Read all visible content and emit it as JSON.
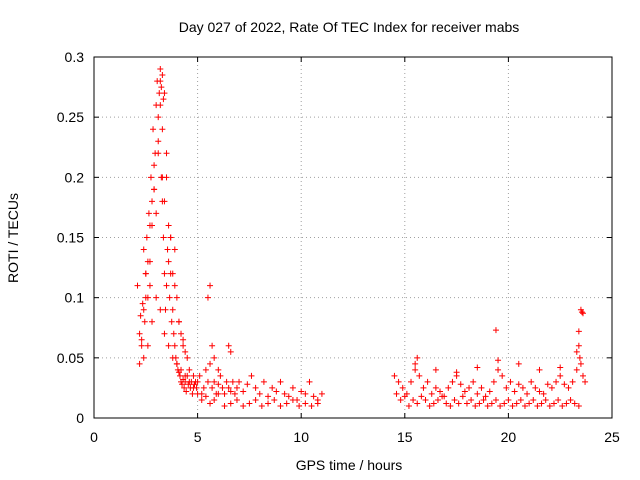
{
  "chart_data": {
    "type": "scatter",
    "title": "Day 027 of 2022, Rate Of TEC Index for receiver mabs",
    "xlabel": "GPS time / hours",
    "ylabel": "ROTI / TECUs",
    "xlim": [
      0,
      25
    ],
    "ylim": [
      0,
      0.3
    ],
    "x_ticks": [
      0,
      5,
      10,
      15,
      20,
      25
    ],
    "x_tick_labels": [
      "0",
      "5",
      "10",
      "15",
      "20",
      "25"
    ],
    "y_ticks": [
      0,
      0.05,
      0.1,
      0.15,
      0.2,
      0.25,
      0.3
    ],
    "y_tick_labels": [
      "0",
      "0.05",
      "0.1",
      "0.15",
      "0.2",
      "0.25",
      "0.3"
    ],
    "grid": true,
    "marker": "+",
    "color": "#ff0000",
    "series": [
      {
        "x": [
          2.1,
          2.2,
          2.25,
          2.3,
          2.35,
          2.4,
          2.45,
          2.5,
          2.55,
          2.6,
          2.65,
          2.7,
          2.75,
          2.8,
          2.85,
          2.9,
          2.95,
          3.0,
          3.05,
          3.1,
          3.15,
          3.2,
          3.25,
          3.3,
          3.35,
          3.4,
          3.45,
          3.5,
          3.55,
          3.6,
          3.65,
          3.7,
          3.75,
          3.8,
          3.85,
          3.9,
          3.95,
          4.0,
          4.05,
          4.1,
          4.15,
          4.2,
          4.25,
          4.3,
          4.35,
          4.4,
          4.45,
          4.5,
          4.55,
          4.6,
          4.65,
          4.7,
          4.75,
          4.8,
          4.85,
          4.9,
          4.95,
          5.0,
          5.1,
          5.2,
          5.3,
          5.4,
          5.5,
          5.6,
          5.7,
          5.8,
          5.9,
          6.0,
          6.1,
          6.2,
          6.3,
          6.4,
          6.5,
          6.6,
          6.7,
          6.8,
          6.9,
          7.0,
          7.2,
          7.4,
          7.6,
          7.8,
          8.0,
          8.2,
          8.4,
          8.6,
          8.8,
          9.0,
          9.2,
          9.4,
          9.6,
          9.8,
          10.0,
          10.2,
          10.4,
          10.6,
          10.8,
          11.0,
          2.3,
          2.4,
          2.5,
          2.6,
          2.7,
          2.8,
          2.9,
          3.0,
          3.1,
          3.2,
          3.3,
          3.4,
          3.5,
          3.6,
          3.7,
          3.8,
          3.9,
          4.0,
          4.1,
          4.2,
          4.3,
          4.4,
          4.5,
          2.5,
          2.7,
          2.9,
          3.1,
          3.3,
          3.5,
          3.7,
          3.9,
          4.1,
          4.3,
          3.2,
          3.25,
          3.3,
          3.35,
          3.4,
          5.5,
          5.6,
          5.7,
          5.8,
          6.0,
          6.5,
          6.6,
          2.2,
          2.4,
          2.6,
          2.8,
          3.0,
          3.2,
          3.4,
          3.6,
          3.8,
          4.0,
          4.2,
          4.4,
          4.6,
          4.8,
          5.0,
          5.2,
          5.4,
          5.6,
          5.8,
          6.0,
          6.3,
          6.6,
          6.9,
          7.2,
          7.5,
          7.8,
          8.1,
          8.4,
          8.7,
          9.0,
          9.3,
          9.6,
          9.9,
          10.2,
          10.5,
          10.8,
          14.5,
          14.7,
          14.9,
          15.1,
          15.3,
          15.5,
          15.7,
          15.9,
          16.1,
          16.3,
          16.5,
          16.7,
          16.9,
          17.1,
          17.3,
          17.5,
          17.7,
          17.9,
          18.1,
          18.3,
          18.5,
          18.7,
          18.9,
          19.1,
          19.3,
          19.5,
          19.7,
          19.9,
          20.1,
          20.3,
          20.5,
          20.7,
          20.9,
          21.1,
          21.3,
          21.5,
          21.7,
          21.9,
          22.1,
          22.3,
          22.5,
          22.7,
          22.9,
          23.1,
          23.3,
          23.5,
          23.6,
          23.7,
          14.6,
          14.8,
          15.0,
          15.2,
          15.4,
          15.6,
          15.8,
          16.0,
          16.2,
          16.4,
          16.6,
          16.8,
          17.0,
          17.2,
          17.4,
          17.6,
          17.8,
          18.0,
          18.2,
          18.4,
          18.6,
          18.8,
          19.0,
          19.2,
          19.4,
          19.6,
          19.8,
          20.0,
          20.2,
          20.4,
          20.6,
          20.8,
          21.0,
          21.2,
          21.4,
          21.6,
          21.8,
          22.0,
          22.2,
          22.4,
          22.6,
          22.8,
          23.0,
          23.2,
          23.4,
          15.5,
          15.6,
          16.5,
          17.5,
          18.5,
          19.5,
          20.5,
          21.5,
          22.5,
          23.3,
          23.4,
          19.4,
          23.5,
          23.55,
          23.6,
          23.4,
          23.45
        ],
        "y": [
          0.11,
          0.07,
          0.085,
          0.065,
          0.095,
          0.14,
          0.08,
          0.12,
          0.15,
          0.1,
          0.17,
          0.13,
          0.2,
          0.16,
          0.24,
          0.19,
          0.22,
          0.26,
          0.28,
          0.25,
          0.27,
          0.29,
          0.2,
          0.18,
          0.15,
          0.12,
          0.09,
          0.11,
          0.14,
          0.13,
          0.1,
          0.12,
          0.08,
          0.09,
          0.07,
          0.06,
          0.05,
          0.045,
          0.04,
          0.038,
          0.035,
          0.03,
          0.028,
          0.032,
          0.025,
          0.03,
          0.022,
          0.035,
          0.028,
          0.04,
          0.025,
          0.03,
          0.02,
          0.035,
          0.028,
          0.03,
          0.025,
          0.03,
          0.035,
          0.02,
          0.025,
          0.04,
          0.03,
          0.045,
          0.025,
          0.03,
          0.02,
          0.028,
          0.035,
          0.025,
          0.02,
          0.03,
          0.025,
          0.022,
          0.03,
          0.02,
          0.025,
          0.03,
          0.022,
          0.028,
          0.035,
          0.025,
          0.02,
          0.03,
          0.018,
          0.025,
          0.022,
          0.03,
          0.02,
          0.018,
          0.025,
          0.015,
          0.022,
          0.02,
          0.03,
          0.018,
          0.015,
          0.02,
          0.06,
          0.09,
          0.1,
          0.13,
          0.11,
          0.18,
          0.21,
          0.17,
          0.23,
          0.26,
          0.2,
          0.18,
          0.22,
          0.16,
          0.15,
          0.12,
          0.14,
          0.1,
          0.08,
          0.07,
          0.06,
          0.055,
          0.05,
          0.12,
          0.16,
          0.19,
          0.22,
          0.24,
          0.2,
          0.15,
          0.11,
          0.08,
          0.065,
          0.28,
          0.275,
          0.285,
          0.265,
          0.27,
          0.1,
          0.11,
          0.06,
          0.05,
          0.04,
          0.06,
          0.055,
          0.045,
          0.05,
          0.06,
          0.08,
          0.1,
          0.09,
          0.07,
          0.06,
          0.05,
          0.045,
          0.04,
          0.035,
          0.03,
          0.025,
          0.02,
          0.015,
          0.018,
          0.012,
          0.015,
          0.02,
          0.01,
          0.012,
          0.015,
          0.01,
          0.012,
          0.015,
          0.01,
          0.012,
          0.015,
          0.01,
          0.012,
          0.015,
          0.01,
          0.012,
          0.01,
          0.012,
          0.035,
          0.03,
          0.025,
          0.02,
          0.03,
          0.04,
          0.035,
          0.025,
          0.03,
          0.02,
          0.025,
          0.022,
          0.018,
          0.025,
          0.03,
          0.035,
          0.028,
          0.022,
          0.025,
          0.03,
          0.02,
          0.025,
          0.018,
          0.022,
          0.03,
          0.04,
          0.035,
          0.025,
          0.03,
          0.022,
          0.028,
          0.025,
          0.02,
          0.03,
          0.025,
          0.022,
          0.02,
          0.028,
          0.025,
          0.03,
          0.035,
          0.028,
          0.025,
          0.03,
          0.04,
          0.045,
          0.035,
          0.03,
          0.02,
          0.015,
          0.018,
          0.01,
          0.015,
          0.012,
          0.018,
          0.015,
          0.01,
          0.012,
          0.015,
          0.018,
          0.012,
          0.01,
          0.015,
          0.012,
          0.018,
          0.012,
          0.015,
          0.01,
          0.012,
          0.015,
          0.01,
          0.012,
          0.015,
          0.01,
          0.012,
          0.015,
          0.01,
          0.012,
          0.015,
          0.01,
          0.012,
          0.015,
          0.01,
          0.012,
          0.015,
          0.01,
          0.012,
          0.015,
          0.01,
          0.012,
          0.015,
          0.012,
          0.01,
          0.045,
          0.05,
          0.04,
          0.038,
          0.042,
          0.048,
          0.045,
          0.04,
          0.042,
          0.055,
          0.06,
          0.073,
          0.09,
          0.088,
          0.087,
          0.072,
          0.05
        ]
      }
    ]
  }
}
